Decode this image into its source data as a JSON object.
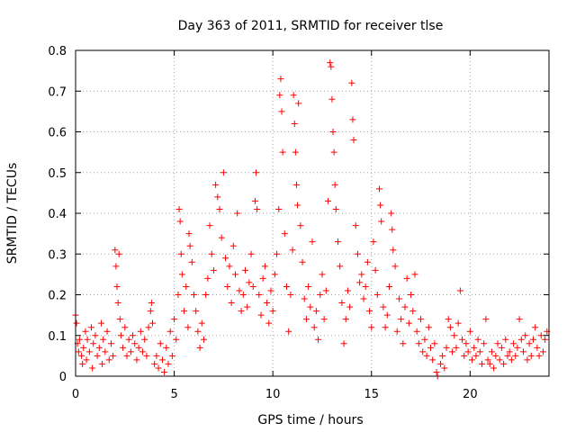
{
  "chart_data": {
    "type": "scatter",
    "title": "Day 363 of 2011, SRMTID for receiver tlse",
    "xlabel": "GPS time / hours",
    "ylabel": "SRMTID / TECUs",
    "xlim": [
      0,
      24
    ],
    "ylim": [
      0,
      0.8
    ],
    "grid": true,
    "marker": "+",
    "marker_color": "#ff0000",
    "x_ticks": [
      0,
      5,
      10,
      15,
      20
    ],
    "x_tick_labels": [
      "0",
      "5",
      "10",
      "15",
      "20"
    ],
    "y_ticks": [
      0,
      0.1,
      0.2,
      0.3,
      0.4,
      0.5,
      0.6,
      0.7,
      0.8
    ],
    "y_tick_labels": [
      "0",
      "0.1",
      "0.2",
      "0.3",
      "0.4",
      "0.5",
      "0.6",
      "0.7",
      "0.8"
    ],
    "series": [
      {
        "name": "tlse",
        "points": [
          [
            0.0,
            0.15
          ],
          [
            0.05,
            0.13
          ],
          [
            0.1,
            0.08
          ],
          [
            0.15,
            0.06
          ],
          [
            0.2,
            0.09
          ],
          [
            0.3,
            0.05
          ],
          [
            0.35,
            0.03
          ],
          [
            0.4,
            0.07
          ],
          [
            0.5,
            0.11
          ],
          [
            0.55,
            0.04
          ],
          [
            0.6,
            0.09
          ],
          [
            0.7,
            0.06
          ],
          [
            0.8,
            0.12
          ],
          [
            0.85,
            0.02
          ],
          [
            0.9,
            0.08
          ],
          [
            1.0,
            0.1
          ],
          [
            1.1,
            0.05
          ],
          [
            1.2,
            0.07
          ],
          [
            1.3,
            0.13
          ],
          [
            1.35,
            0.03
          ],
          [
            1.4,
            0.09
          ],
          [
            1.5,
            0.06
          ],
          [
            1.6,
            0.11
          ],
          [
            1.7,
            0.04
          ],
          [
            1.8,
            0.08
          ],
          [
            1.9,
            0.05
          ],
          [
            2.0,
            0.31
          ],
          [
            2.05,
            0.27
          ],
          [
            2.1,
            0.22
          ],
          [
            2.15,
            0.18
          ],
          [
            2.2,
            0.3
          ],
          [
            2.25,
            0.14
          ],
          [
            2.3,
            0.1
          ],
          [
            2.4,
            0.07
          ],
          [
            2.5,
            0.12
          ],
          [
            2.6,
            0.05
          ],
          [
            2.7,
            0.09
          ],
          [
            2.8,
            0.06
          ],
          [
            2.9,
            0.1
          ],
          [
            3.0,
            0.08
          ],
          [
            3.1,
            0.04
          ],
          [
            3.2,
            0.07
          ],
          [
            3.3,
            0.11
          ],
          [
            3.4,
            0.06
          ],
          [
            3.5,
            0.09
          ],
          [
            3.6,
            0.05
          ],
          [
            3.7,
            0.12
          ],
          [
            3.8,
            0.16
          ],
          [
            3.85,
            0.18
          ],
          [
            3.9,
            0.13
          ],
          [
            4.0,
            0.03
          ],
          [
            4.1,
            0.05
          ],
          [
            4.2,
            0.02
          ],
          [
            4.3,
            0.08
          ],
          [
            4.4,
            0.04
          ],
          [
            4.5,
            0.01
          ],
          [
            4.6,
            0.07
          ],
          [
            4.7,
            0.03
          ],
          [
            4.8,
            0.11
          ],
          [
            4.9,
            0.05
          ],
          [
            5.0,
            0.14
          ],
          [
            5.1,
            0.09
          ],
          [
            5.2,
            0.2
          ],
          [
            5.25,
            0.41
          ],
          [
            5.3,
            0.38
          ],
          [
            5.35,
            0.3
          ],
          [
            5.4,
            0.25
          ],
          [
            5.5,
            0.16
          ],
          [
            5.6,
            0.22
          ],
          [
            5.7,
            0.12
          ],
          [
            5.75,
            0.35
          ],
          [
            5.8,
            0.32
          ],
          [
            5.9,
            0.28
          ],
          [
            6.0,
            0.2
          ],
          [
            6.1,
            0.16
          ],
          [
            6.2,
            0.11
          ],
          [
            6.3,
            0.07
          ],
          [
            6.4,
            0.13
          ],
          [
            6.5,
            0.09
          ],
          [
            6.6,
            0.2
          ],
          [
            6.7,
            0.24
          ],
          [
            6.8,
            0.37
          ],
          [
            6.9,
            0.3
          ],
          [
            7.0,
            0.26
          ],
          [
            7.1,
            0.47
          ],
          [
            7.2,
            0.44
          ],
          [
            7.3,
            0.41
          ],
          [
            7.4,
            0.34
          ],
          [
            7.5,
            0.5
          ],
          [
            7.6,
            0.29
          ],
          [
            7.7,
            0.22
          ],
          [
            7.8,
            0.27
          ],
          [
            7.9,
            0.18
          ],
          [
            8.0,
            0.32
          ],
          [
            8.1,
            0.25
          ],
          [
            8.2,
            0.4
          ],
          [
            8.3,
            0.21
          ],
          [
            8.4,
            0.16
          ],
          [
            8.5,
            0.2
          ],
          [
            8.6,
            0.26
          ],
          [
            8.7,
            0.17
          ],
          [
            8.8,
            0.23
          ],
          [
            8.9,
            0.3
          ],
          [
            9.0,
            0.22
          ],
          [
            9.1,
            0.43
          ],
          [
            9.15,
            0.5
          ],
          [
            9.2,
            0.41
          ],
          [
            9.3,
            0.2
          ],
          [
            9.4,
            0.15
          ],
          [
            9.5,
            0.24
          ],
          [
            9.6,
            0.27
          ],
          [
            9.7,
            0.18
          ],
          [
            9.8,
            0.13
          ],
          [
            9.9,
            0.21
          ],
          [
            10.0,
            0.16
          ],
          [
            10.1,
            0.25
          ],
          [
            10.2,
            0.3
          ],
          [
            10.3,
            0.41
          ],
          [
            10.35,
            0.69
          ],
          [
            10.4,
            0.73
          ],
          [
            10.45,
            0.65
          ],
          [
            10.5,
            0.55
          ],
          [
            10.6,
            0.35
          ],
          [
            10.7,
            0.22
          ],
          [
            10.8,
            0.11
          ],
          [
            10.9,
            0.2
          ],
          [
            11.0,
            0.31
          ],
          [
            11.05,
            0.69
          ],
          [
            11.1,
            0.62
          ],
          [
            11.15,
            0.55
          ],
          [
            11.2,
            0.47
          ],
          [
            11.25,
            0.42
          ],
          [
            11.3,
            0.67
          ],
          [
            11.4,
            0.37
          ],
          [
            11.5,
            0.28
          ],
          [
            11.6,
            0.19
          ],
          [
            11.7,
            0.14
          ],
          [
            11.8,
            0.22
          ],
          [
            11.9,
            0.17
          ],
          [
            12.0,
            0.33
          ],
          [
            12.1,
            0.12
          ],
          [
            12.2,
            0.16
          ],
          [
            12.3,
            0.09
          ],
          [
            12.4,
            0.2
          ],
          [
            12.5,
            0.25
          ],
          [
            12.6,
            0.14
          ],
          [
            12.7,
            0.21
          ],
          [
            12.8,
            0.43
          ],
          [
            12.9,
            0.77
          ],
          [
            12.95,
            0.76
          ],
          [
            13.0,
            0.68
          ],
          [
            13.05,
            0.6
          ],
          [
            13.1,
            0.55
          ],
          [
            13.15,
            0.47
          ],
          [
            13.2,
            0.41
          ],
          [
            13.3,
            0.33
          ],
          [
            13.4,
            0.27
          ],
          [
            13.5,
            0.18
          ],
          [
            13.6,
            0.08
          ],
          [
            13.7,
            0.14
          ],
          [
            13.8,
            0.21
          ],
          [
            13.9,
            0.17
          ],
          [
            14.0,
            0.72
          ],
          [
            14.05,
            0.63
          ],
          [
            14.1,
            0.58
          ],
          [
            14.2,
            0.37
          ],
          [
            14.3,
            0.3
          ],
          [
            14.4,
            0.23
          ],
          [
            14.5,
            0.25
          ],
          [
            14.6,
            0.19
          ],
          [
            14.7,
            0.22
          ],
          [
            14.8,
            0.28
          ],
          [
            14.9,
            0.16
          ],
          [
            15.0,
            0.12
          ],
          [
            15.1,
            0.33
          ],
          [
            15.2,
            0.26
          ],
          [
            15.3,
            0.2
          ],
          [
            15.4,
            0.46
          ],
          [
            15.45,
            0.42
          ],
          [
            15.5,
            0.38
          ],
          [
            15.6,
            0.17
          ],
          [
            15.7,
            0.12
          ],
          [
            15.8,
            0.15
          ],
          [
            15.9,
            0.22
          ],
          [
            16.0,
            0.4
          ],
          [
            16.05,
            0.36
          ],
          [
            16.1,
            0.31
          ],
          [
            16.2,
            0.27
          ],
          [
            16.3,
            0.11
          ],
          [
            16.4,
            0.19
          ],
          [
            16.5,
            0.14
          ],
          [
            16.6,
            0.08
          ],
          [
            16.7,
            0.17
          ],
          [
            16.8,
            0.24
          ],
          [
            16.9,
            0.13
          ],
          [
            17.0,
            0.2
          ],
          [
            17.1,
            0.16
          ],
          [
            17.2,
            0.25
          ],
          [
            17.3,
            0.11
          ],
          [
            17.4,
            0.08
          ],
          [
            17.5,
            0.14
          ],
          [
            17.6,
            0.06
          ],
          [
            17.7,
            0.09
          ],
          [
            17.8,
            0.05
          ],
          [
            17.9,
            0.12
          ],
          [
            18.0,
            0.07
          ],
          [
            18.1,
            0.04
          ],
          [
            18.2,
            0.08
          ],
          [
            18.3,
            0.01
          ],
          [
            18.35,
            0.0
          ],
          [
            18.5,
            0.03
          ],
          [
            18.6,
            0.05
          ],
          [
            18.7,
            0.02
          ],
          [
            18.8,
            0.07
          ],
          [
            18.9,
            0.14
          ],
          [
            19.0,
            0.12
          ],
          [
            19.1,
            0.06
          ],
          [
            19.2,
            0.1
          ],
          [
            19.3,
            0.07
          ],
          [
            19.4,
            0.13
          ],
          [
            19.5,
            0.21
          ],
          [
            19.6,
            0.09
          ],
          [
            19.7,
            0.05
          ],
          [
            19.8,
            0.08
          ],
          [
            19.9,
            0.06
          ],
          [
            20.0,
            0.11
          ],
          [
            20.1,
            0.04
          ],
          [
            20.2,
            0.07
          ],
          [
            20.3,
            0.05
          ],
          [
            20.4,
            0.09
          ],
          [
            20.5,
            0.06
          ],
          [
            20.6,
            0.03
          ],
          [
            20.7,
            0.08
          ],
          [
            20.8,
            0.14
          ],
          [
            20.9,
            0.04
          ],
          [
            21.0,
            0.03
          ],
          [
            21.1,
            0.06
          ],
          [
            21.2,
            0.02
          ],
          [
            21.3,
            0.05
          ],
          [
            21.4,
            0.08
          ],
          [
            21.5,
            0.04
          ],
          [
            21.6,
            0.07
          ],
          [
            21.7,
            0.03
          ],
          [
            21.8,
            0.09
          ],
          [
            21.9,
            0.05
          ],
          [
            22.0,
            0.06
          ],
          [
            22.1,
            0.04
          ],
          [
            22.2,
            0.08
          ],
          [
            22.3,
            0.05
          ],
          [
            22.4,
            0.07
          ],
          [
            22.5,
            0.14
          ],
          [
            22.6,
            0.09
          ],
          [
            22.7,
            0.06
          ],
          [
            22.8,
            0.1
          ],
          [
            22.9,
            0.04
          ],
          [
            23.0,
            0.08
          ],
          [
            23.1,
            0.05
          ],
          [
            23.2,
            0.09
          ],
          [
            23.3,
            0.12
          ],
          [
            23.4,
            0.07
          ],
          [
            23.5,
            0.05
          ],
          [
            23.6,
            0.1
          ],
          [
            23.7,
            0.06
          ],
          [
            23.8,
            0.09
          ],
          [
            23.9,
            0.11
          ]
        ]
      }
    ]
  }
}
